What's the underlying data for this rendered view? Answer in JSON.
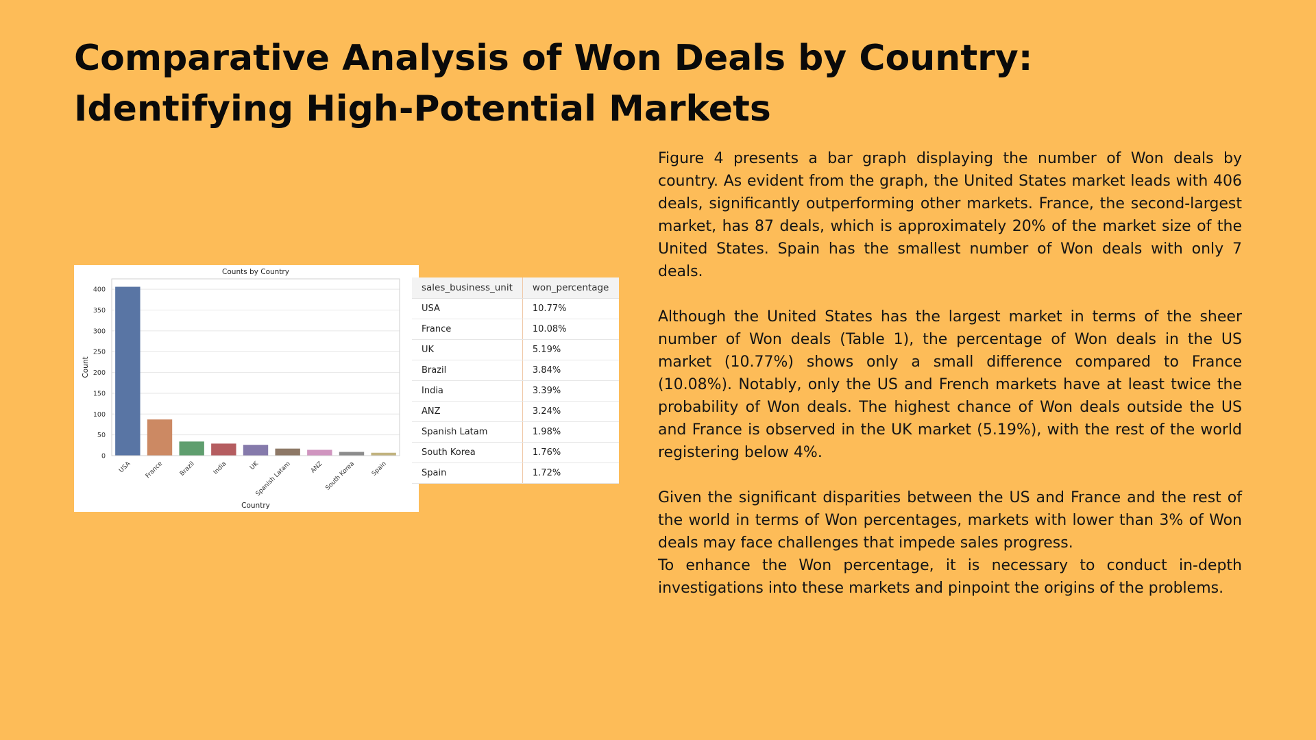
{
  "title": "Comparative Analysis of Won Deals by Country: Identifying High-Potential Markets",
  "chart_data": {
    "type": "bar",
    "title": "Counts by Country",
    "xlabel": "Country",
    "ylabel": "Count",
    "categories": [
      "USA",
      "France",
      "Brazil",
      "India",
      "UK",
      "Spanish Latam",
      "ANZ",
      "South Korea",
      "Spain"
    ],
    "values": [
      406,
      87,
      34,
      29,
      26,
      17,
      14,
      9,
      7
    ],
    "colors": [
      "#5975a4",
      "#cc8963",
      "#5f9e6e",
      "#b55d60",
      "#857aab",
      "#8d7866",
      "#d095bf",
      "#8c8c8c",
      "#c1b37f"
    ],
    "yticks": [
      0,
      50,
      100,
      150,
      200,
      250,
      300,
      350,
      400
    ],
    "ylim": [
      0,
      425
    ],
    "grid": true
  },
  "table": {
    "headers": [
      "sales_business_unit",
      "won_percentage"
    ],
    "rows": [
      [
        "USA",
        "10.77%"
      ],
      [
        "France",
        "10.08%"
      ],
      [
        "UK",
        "5.19%"
      ],
      [
        "Brazil",
        "3.84%"
      ],
      [
        "India",
        "3.39%"
      ],
      [
        "ANZ",
        "3.24%"
      ],
      [
        "Spanish Latam",
        "1.98%"
      ],
      [
        "South Korea",
        "1.76%"
      ],
      [
        "Spain",
        "1.72%"
      ]
    ]
  },
  "paragraphs": [
    "Figure 4 presents a bar graph displaying the number of Won deals by country. As evident from the graph, the United States market leads with 406 deals, significantly outperforming other markets. France, the second-largest market, has 87 deals, which is approximately 20% of the market size of the United States. Spain has the smallest number of Won deals with only 7 deals.",
    "Although the United States has the largest market in terms of the sheer number of Won deals (Table 1), the percentage of Won deals in the US market (10.77%) shows only a small difference compared to France (10.08%). Notably, only the US and French markets have at least twice the probability of Won deals. The highest chance of Won deals outside the US and France is observed in the UK market (5.19%), with the rest of the world registering below 4%.",
    "Given the significant disparities between the US and France and the rest of the world in terms of Won percentages, markets with lower than 3% of Won deals may face challenges that impede sales progress.",
    "To enhance the Won percentage, it is necessary to conduct in-depth investigations into these markets and pinpoint the origins of the problems."
  ]
}
